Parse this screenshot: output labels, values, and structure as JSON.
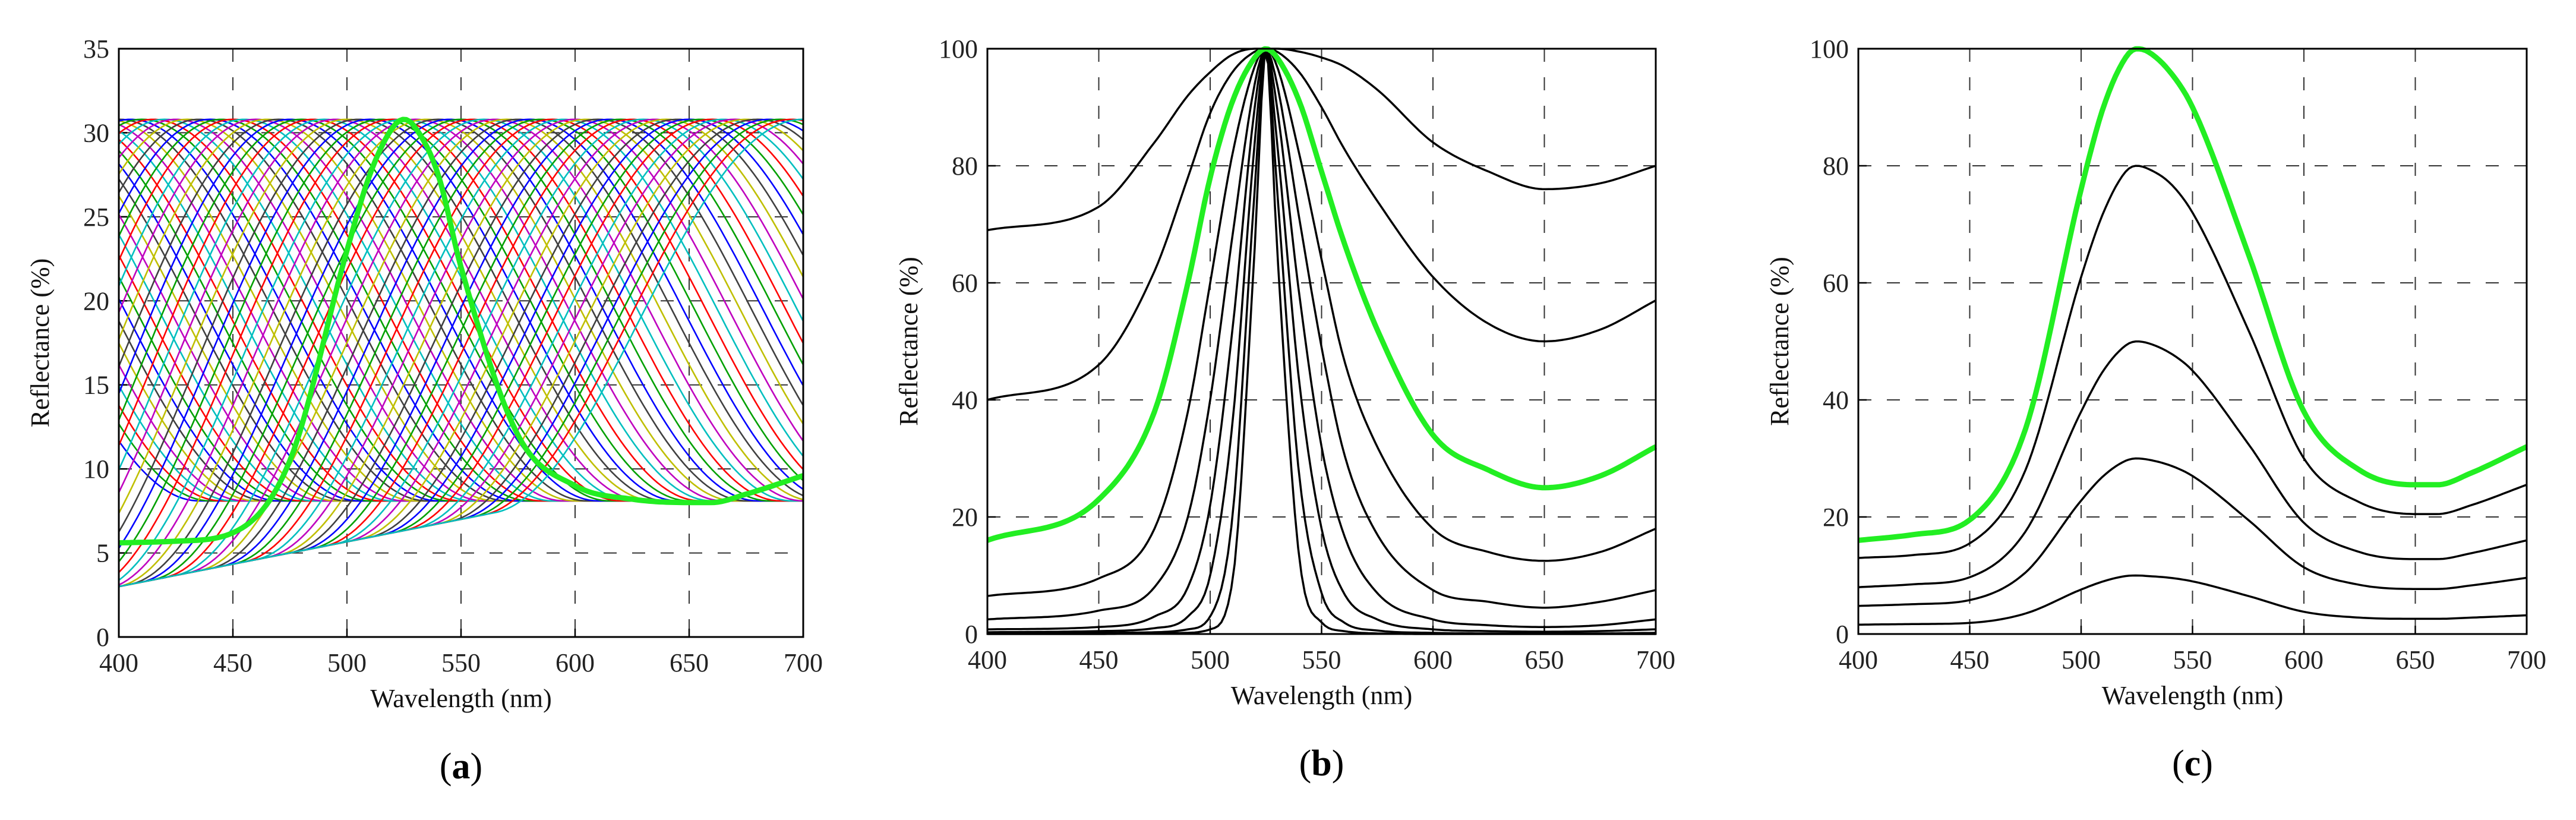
{
  "chart_data": [
    {
      "type": "line",
      "panel_label": "a",
      "xlabel": "Wavelength (nm)",
      "ylabel": "Reflectance (%)",
      "xlim": [
        400,
        700
      ],
      "ylim": [
        0,
        35
      ],
      "xticks": [
        400,
        450,
        500,
        550,
        600,
        650,
        700
      ],
      "yticks": [
        0,
        5,
        10,
        15,
        20,
        25,
        30,
        35
      ],
      "grid": "dashed",
      "description_series": "family of shifted reflectance curves",
      "family": {
        "peak_wavelength_start": 300,
        "peak_wavelength_step": 5,
        "peak_count": 81,
        "peak_value": 30.8,
        "trough_value": 8.1,
        "low_base_at_400": 3.0,
        "low_base_at_700": 11.0,
        "colors": [
          "#0000ff",
          "#00a000",
          "#ff0000",
          "#00bfbf",
          "#bf00bf",
          "#bfbf00",
          "#404040"
        ]
      },
      "highlight": {
        "name": "highlighted reflectance (peak 525 nm)",
        "color": "#22ee22",
        "x": [
          400,
          425,
          450,
          475,
          500,
          510,
          520,
          525,
          530,
          540,
          550,
          575,
          600,
          625,
          650,
          660,
          675,
          700
        ],
        "y": [
          5.6,
          5.7,
          6.2,
          10.5,
          23.0,
          27.5,
          30.3,
          30.8,
          30.3,
          27.5,
          22.0,
          12.0,
          9.0,
          8.2,
          8.0,
          8.0,
          8.5,
          9.6
        ]
      }
    },
    {
      "type": "line",
      "panel_label": "b",
      "xlabel": "Wavelength (nm)",
      "ylabel": "Reflectance (%)",
      "xlim": [
        400,
        700
      ],
      "ylim": [
        0,
        100
      ],
      "xticks": [
        400,
        450,
        500,
        550,
        600,
        650,
        700
      ],
      "yticks": [
        0,
        20,
        40,
        60,
        80,
        100
      ],
      "grid": "dashed",
      "x": [
        400,
        450,
        475,
        490,
        500,
        510,
        520,
        525,
        530,
        540,
        550,
        560,
        575,
        600,
        625,
        650,
        675,
        700
      ],
      "series": [
        {
          "name": "curve-1",
          "color": "#000000",
          "values": [
            69,
            73,
            84,
            92,
            96,
            99,
            100,
            100,
            100,
            99.5,
            98.5,
            97,
            93,
            84,
            79,
            76,
            77,
            80
          ]
        },
        {
          "name": "curve-2",
          "color": "#000000",
          "values": [
            40,
            46,
            62,
            78,
            89,
            96,
            99.5,
            100,
            99.5,
            96,
            90,
            83,
            74,
            61,
            53,
            50,
            52,
            57
          ]
        },
        {
          "name": "curve-3",
          "color": "#22ee22",
          "values": [
            16,
            23,
            38,
            60,
            78,
            91,
            98.5,
            100,
            98.5,
            91,
            79,
            67,
            52,
            34,
            28,
            25,
            27,
            32
          ]
        },
        {
          "name": "curve-4",
          "color": "#000000",
          "values": [
            6.5,
            9.5,
            18,
            38,
            60,
            82,
            97,
            100,
            97,
            82,
            64,
            47,
            32,
            18,
            14,
            12.5,
            14,
            18
          ]
        },
        {
          "name": "curve-5",
          "color": "#000000",
          "values": [
            2.5,
            4,
            8,
            20,
            40,
            68,
            94,
            100,
            94,
            71,
            49,
            31,
            17,
            7.5,
            5.5,
            4.5,
            5.5,
            7.5
          ]
        },
        {
          "name": "curve-6",
          "color": "#000000",
          "values": [
            0.8,
            1.2,
            3,
            8,
            22,
            52,
            90,
            100,
            90,
            58,
            32,
            17,
            7,
            2.5,
            1.5,
            1.2,
            1.5,
            2.5
          ]
        },
        {
          "name": "curve-7",
          "color": "#000000",
          "values": [
            0.3,
            0.5,
            1,
            3,
            10,
            36,
            84,
            100,
            84,
            43,
            18,
            7,
            2.5,
            0.8,
            0.5,
            0.4,
            0.5,
            0.8
          ]
        },
        {
          "name": "curve-8",
          "color": "#000000",
          "values": [
            0.1,
            0.2,
            0.3,
            0.8,
            3,
            20,
            76,
            100,
            76,
            27,
            7,
            2,
            0.6,
            0.2,
            0.1,
            0.1,
            0.1,
            0.2
          ]
        },
        {
          "name": "curve-9",
          "color": "#000000",
          "values": [
            0,
            0,
            0.1,
            0.2,
            0.8,
            9,
            66,
            100,
            66,
            13,
            2,
            0.5,
            0.1,
            0,
            0,
            0,
            0,
            0
          ]
        }
      ]
    },
    {
      "type": "line",
      "panel_label": "c",
      "xlabel": "Wavelength (nm)",
      "ylabel": "Reflectance (%)",
      "xlim": [
        400,
        700
      ],
      "ylim": [
        0,
        100
      ],
      "xticks": [
        400,
        450,
        500,
        550,
        600,
        650,
        700
      ],
      "yticks": [
        0,
        20,
        40,
        60,
        80,
        100
      ],
      "grid": "dashed",
      "x": [
        400,
        425,
        450,
        475,
        500,
        510,
        520,
        525,
        530,
        540,
        550,
        575,
        600,
        625,
        650,
        660,
        675,
        700
      ],
      "series": [
        {
          "name": "curve-1",
          "color": "#22ee22",
          "values": [
            16,
            17,
            19.5,
            35,
            76,
            90,
            98.5,
            100,
            99.5,
            96,
            90,
            65,
            38,
            28,
            25.5,
            25.5,
            27.5,
            32
          ]
        },
        {
          "name": "curve-2",
          "color": "#000000",
          "values": [
            13,
            13.5,
            15.5,
            28,
            61,
            72,
            79,
            80,
            79.5,
            77,
            72,
            52,
            30,
            22.5,
            20.5,
            20.5,
            22,
            25.5
          ]
        },
        {
          "name": "curve-3",
          "color": "#000000",
          "values": [
            8,
            8.5,
            9.7,
            17.5,
            38,
            45,
            49.3,
            50,
            49.7,
            48,
            45,
            32.5,
            19,
            14,
            12.8,
            12.8,
            13.8,
            16
          ]
        },
        {
          "name": "curve-4",
          "color": "#000000",
          "values": [
            4.8,
            5.1,
            5.8,
            10.5,
            22.8,
            27,
            29.6,
            30,
            29.8,
            28.8,
            27,
            19.5,
            11.4,
            8.4,
            7.7,
            7.7,
            8.3,
            9.6
          ]
        },
        {
          "name": "curve-5",
          "color": "#000000",
          "values": [
            1.6,
            1.7,
            1.9,
            3.5,
            7.6,
            9,
            9.9,
            10,
            9.9,
            9.6,
            9,
            6.5,
            3.8,
            2.8,
            2.6,
            2.6,
            2.8,
            3.2
          ]
        }
      ]
    }
  ]
}
